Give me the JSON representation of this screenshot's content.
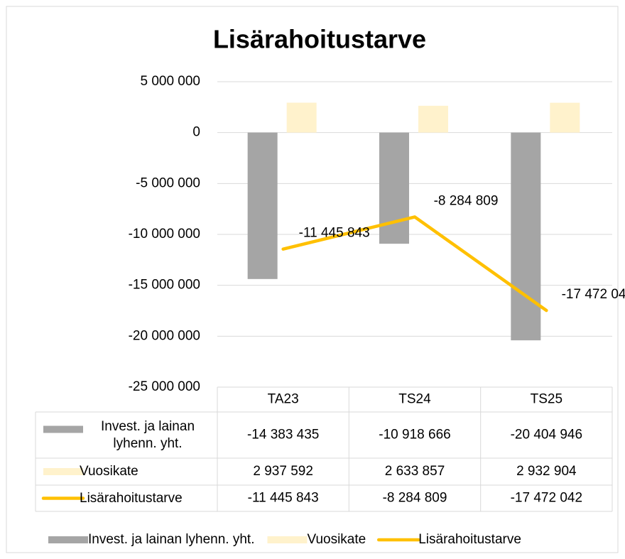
{
  "chart_data": {
    "type": "bar",
    "title": "Lisärahoitustarve",
    "categories": [
      "TA23",
      "TS24",
      "TS25"
    ],
    "series": [
      {
        "name": "Invest. ja lainan lyhenn. yht.",
        "type": "bar",
        "color": "#a5a5a5",
        "values": [
          -14383435,
          -10918666,
          -20404946
        ],
        "value_labels": [
          "-14 383 435",
          "-10 918 666",
          "-20 404 946"
        ]
      },
      {
        "name": "Vuosikate",
        "type": "bar",
        "color": "#fff2cc",
        "values": [
          2937592,
          2633857,
          2932904
        ],
        "value_labels": [
          "2 937 592",
          "2 633 857",
          "2 932 904"
        ]
      },
      {
        "name": "Lisärahoitustarve",
        "type": "line",
        "color": "#ffc000",
        "values": [
          -11445843,
          -8284809,
          -17472042
        ],
        "value_labels": [
          "-11 445 843",
          "-8 284 809",
          "-17 472 042"
        ]
      }
    ],
    "ylim": [
      -25000000,
      5000000
    ],
    "yticks": [
      {
        "value": 5000000,
        "label": "5 000 000"
      },
      0,
      {
        "value": -5000000,
        "label": "-5 000 000"
      },
      {
        "value": -10000000,
        "label": "-10 000 000"
      },
      {
        "value": -15000000,
        "label": "-15 000 000"
      },
      {
        "value": -20000000,
        "label": "-20 000 000"
      },
      {
        "value": -25000000,
        "label": "-25 000 000"
      }
    ],
    "grid": true,
    "data_table": true,
    "legend": "bottom"
  }
}
